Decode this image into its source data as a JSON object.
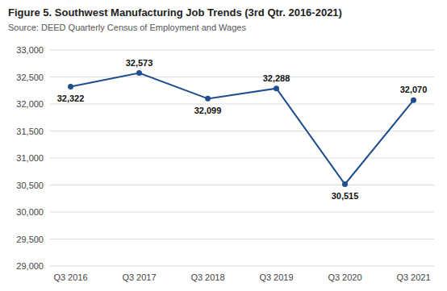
{
  "chart_data": {
    "type": "line",
    "title": "Figure 5. Southwest Manufacturing Job Trends (3rd Qtr. 2016-2021)",
    "subtitle": "Source: DEED Quarterly Census of Employment and Wages",
    "categories": [
      "Q3 2016",
      "Q3 2017",
      "Q3 2018",
      "Q3 2019",
      "Q3 2020",
      "Q3 2021"
    ],
    "values": [
      32322,
      32573,
      32099,
      32288,
      30515,
      32070
    ],
    "value_labels": [
      "32,322",
      "32,573",
      "32,099",
      "32,288",
      "30,515",
      "32,070"
    ],
    "data_labels": true,
    "color": "#1F4E8C",
    "marker": "circle",
    "line_style": "solid",
    "ylim": [
      29000,
      33000
    ],
    "yticks": [
      {
        "value": 29000,
        "label": "29,000"
      },
      {
        "value": 29500,
        "label": "29,500"
      },
      {
        "value": 30000,
        "label": "30,000"
      },
      {
        "value": 30500,
        "label": "30,500"
      },
      {
        "value": 31000,
        "label": "31,000"
      },
      {
        "value": 31500,
        "label": "31,500"
      },
      {
        "value": 32000,
        "label": "32,000"
      },
      {
        "value": 32500,
        "label": "32,500"
      },
      {
        "value": 33000,
        "label": "33,000"
      }
    ],
    "grid": true
  }
}
